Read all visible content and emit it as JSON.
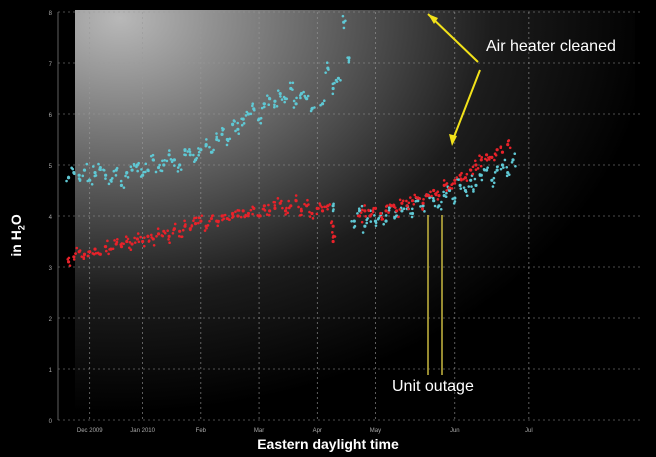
{
  "chart_data": {
    "type": "scatter",
    "title": "",
    "xlabel": "Eastern daylight time",
    "ylabel_main": "in H",
    "ylabel_sub": "2",
    "ylabel_tail": "O",
    "x_tick_labels": [
      "Dec 2009",
      "Jan 2010",
      "Feb",
      "Mar",
      "Apr",
      "May",
      "Jun",
      "Jul"
    ],
    "y_tick_labels": [
      "0",
      "1",
      "2",
      "3",
      "4",
      "5",
      "6",
      "7",
      "8"
    ],
    "xlim": [
      0,
      11
    ],
    "ylim": [
      0,
      8
    ],
    "grid": true,
    "x_ticks": [
      0.6,
      1.6,
      2.7,
      3.8,
      4.9,
      6.0,
      7.5,
      8.9
    ],
    "series": [
      {
        "color": "#5fc8d4",
        "points": [
          [
            0.2,
            4.75
          ],
          [
            0.3,
            4.85
          ],
          [
            0.4,
            4.8
          ],
          [
            0.5,
            4.9
          ],
          [
            0.6,
            4.7
          ],
          [
            0.7,
            4.85
          ],
          [
            0.8,
            4.95
          ],
          [
            0.9,
            4.8
          ],
          [
            1.0,
            4.7
          ],
          [
            1.1,
            4.9
          ],
          [
            1.2,
            4.6
          ],
          [
            1.3,
            4.85
          ],
          [
            1.4,
            4.9
          ],
          [
            1.5,
            5.0
          ],
          [
            1.6,
            4.8
          ],
          [
            1.7,
            4.9
          ],
          [
            1.8,
            5.1
          ],
          [
            1.9,
            4.95
          ],
          [
            2.0,
            5.0
          ],
          [
            2.1,
            5.2
          ],
          [
            2.2,
            5.1
          ],
          [
            2.3,
            5.0
          ],
          [
            2.4,
            5.3
          ],
          [
            2.5,
            5.2
          ],
          [
            2.6,
            5.1
          ],
          [
            2.7,
            5.3
          ],
          [
            2.8,
            5.4
          ],
          [
            2.9,
            5.25
          ],
          [
            3.0,
            5.5
          ],
          [
            3.1,
            5.6
          ],
          [
            3.2,
            5.5
          ],
          [
            3.3,
            5.8
          ],
          [
            3.4,
            5.7
          ],
          [
            3.5,
            5.9
          ],
          [
            3.6,
            6.0
          ],
          [
            3.7,
            6.1
          ],
          [
            3.8,
            5.9
          ],
          [
            3.9,
            6.2
          ],
          [
            4.0,
            6.3
          ],
          [
            4.1,
            6.25
          ],
          [
            4.2,
            6.4
          ],
          [
            4.3,
            6.3
          ],
          [
            4.4,
            6.5
          ],
          [
            4.5,
            6.2
          ],
          [
            4.6,
            6.4
          ],
          [
            4.7,
            6.3
          ],
          [
            4.8,
            6.1
          ],
          [
            5.0,
            6.2
          ],
          [
            5.1,
            6.9
          ],
          [
            5.2,
            6.5
          ],
          [
            5.3,
            6.7
          ],
          [
            5.4,
            7.8
          ],
          [
            5.5,
            7.1
          ],
          [
            5.2,
            4.2
          ],
          [
            5.6,
            3.9
          ],
          [
            5.7,
            4.1
          ],
          [
            5.8,
            3.8
          ],
          [
            5.9,
            4.0
          ],
          [
            6.0,
            3.9
          ],
          [
            6.1,
            4.0
          ],
          [
            6.2,
            3.9
          ],
          [
            6.3,
            4.2
          ],
          [
            6.4,
            4.0
          ],
          [
            6.5,
            4.1
          ],
          [
            6.6,
            4.2
          ],
          [
            6.7,
            4.05
          ],
          [
            6.8,
            4.3
          ],
          [
            6.9,
            4.2
          ],
          [
            7.0,
            4.4
          ],
          [
            7.1,
            4.3
          ],
          [
            7.2,
            4.2
          ],
          [
            7.3,
            4.4
          ],
          [
            7.4,
            4.5
          ],
          [
            7.5,
            4.35
          ],
          [
            7.6,
            4.6
          ],
          [
            7.7,
            4.5
          ],
          [
            7.8,
            4.7
          ],
          [
            7.9,
            4.6
          ],
          [
            8.0,
            4.8
          ],
          [
            8.1,
            4.9
          ],
          [
            8.2,
            4.7
          ],
          [
            8.3,
            4.9
          ],
          [
            8.4,
            5.0
          ],
          [
            8.5,
            4.85
          ],
          [
            8.6,
            5.1
          ]
        ]
      },
      {
        "color": "#e8222a",
        "points": [
          [
            0.2,
            3.1
          ],
          [
            0.3,
            3.2
          ],
          [
            0.4,
            3.3
          ],
          [
            0.5,
            3.25
          ],
          [
            0.6,
            3.3
          ],
          [
            0.7,
            3.35
          ],
          [
            0.8,
            3.25
          ],
          [
            0.9,
            3.4
          ],
          [
            1.0,
            3.35
          ],
          [
            1.1,
            3.45
          ],
          [
            1.2,
            3.4
          ],
          [
            1.3,
            3.5
          ],
          [
            1.4,
            3.45
          ],
          [
            1.5,
            3.55
          ],
          [
            1.6,
            3.5
          ],
          [
            1.7,
            3.6
          ],
          [
            1.8,
            3.55
          ],
          [
            1.9,
            3.65
          ],
          [
            2.0,
            3.7
          ],
          [
            2.1,
            3.6
          ],
          [
            2.2,
            3.75
          ],
          [
            2.3,
            3.7
          ],
          [
            2.4,
            3.8
          ],
          [
            2.5,
            3.75
          ],
          [
            2.6,
            3.85
          ],
          [
            2.7,
            3.9
          ],
          [
            2.8,
            3.8
          ],
          [
            2.9,
            3.95
          ],
          [
            3.0,
            3.9
          ],
          [
            3.1,
            4.0
          ],
          [
            3.2,
            3.95
          ],
          [
            3.3,
            4.05
          ],
          [
            3.4,
            4.0
          ],
          [
            3.5,
            4.1
          ],
          [
            3.6,
            4.05
          ],
          [
            3.7,
            4.15
          ],
          [
            3.8,
            4.0
          ],
          [
            3.9,
            4.2
          ],
          [
            4.0,
            4.1
          ],
          [
            4.1,
            4.15
          ],
          [
            4.2,
            4.25
          ],
          [
            4.3,
            4.1
          ],
          [
            4.4,
            4.2
          ],
          [
            4.5,
            4.3
          ],
          [
            4.6,
            4.1
          ],
          [
            4.7,
            4.2
          ],
          [
            4.8,
            4.05
          ],
          [
            4.9,
            4.15
          ],
          [
            5.0,
            4.1
          ],
          [
            5.1,
            4.2
          ],
          [
            5.2,
            3.8
          ],
          [
            5.2,
            3.5
          ],
          [
            5.7,
            4.0
          ],
          [
            5.8,
            4.1
          ],
          [
            5.9,
            4.0
          ],
          [
            6.0,
            4.15
          ],
          [
            6.1,
            4.05
          ],
          [
            6.2,
            4.1
          ],
          [
            6.3,
            4.2
          ],
          [
            6.4,
            4.1
          ],
          [
            6.5,
            4.25
          ],
          [
            6.6,
            4.2
          ],
          [
            6.7,
            4.3
          ],
          [
            6.8,
            4.35
          ],
          [
            6.9,
            4.25
          ],
          [
            7.0,
            4.4
          ],
          [
            7.1,
            4.5
          ],
          [
            7.2,
            4.4
          ],
          [
            7.3,
            4.6
          ],
          [
            7.4,
            4.55
          ],
          [
            7.5,
            4.7
          ],
          [
            7.6,
            4.8
          ],
          [
            7.7,
            4.75
          ],
          [
            7.8,
            4.9
          ],
          [
            7.9,
            5.0
          ],
          [
            8.0,
            5.1
          ],
          [
            8.1,
            5.2
          ],
          [
            8.2,
            5.15
          ],
          [
            8.3,
            5.3
          ],
          [
            8.4,
            5.25
          ],
          [
            8.5,
            5.4
          ]
        ]
      }
    ],
    "annotations": [
      {
        "text": "Air heater cleaned"
      },
      {
        "text": "Unit outage"
      }
    ]
  }
}
